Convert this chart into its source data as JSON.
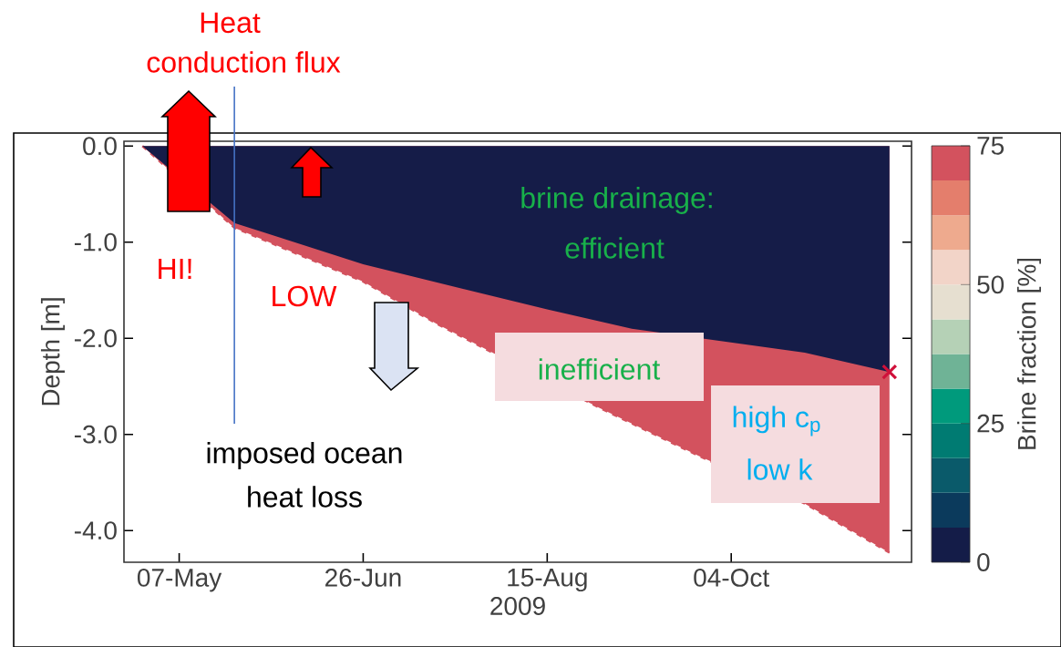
{
  "chart_data": {
    "type": "area",
    "xlabel": "2009",
    "ylabel": "Depth [m]",
    "clabel": "Brine fraction [%]",
    "xlim": [
      "2009-04-22",
      "2009-11-22"
    ],
    "xticks": [
      {
        "value": "2009-05-07",
        "label": "07-May"
      },
      {
        "value": "2009-06-26",
        "label": "26-Jun"
      },
      {
        "value": "2009-08-15",
        "label": "15-Aug"
      },
      {
        "value": "2009-10-04",
        "label": "04-Oct"
      }
    ],
    "ylim": [
      -4.33,
      0.05
    ],
    "yticks": [
      {
        "value": 0,
        "label": "0.0"
      },
      {
        "value": -1,
        "label": "-1.0"
      },
      {
        "value": -2,
        "label": "-2.0"
      },
      {
        "value": -3,
        "label": "-3.0"
      },
      {
        "value": -4,
        "label": "-4.0"
      }
    ],
    "clim": [
      0,
      75
    ],
    "cticks": [
      0,
      25,
      50,
      75
    ],
    "series": [
      {
        "color": "#d3525e",
        "line_style": "dashed",
        "x": [
          "2009-04-27",
          "2009-05-07",
          "2009-05-22",
          "2009-06-26",
          "2009-07-16",
          "2009-08-29",
          "2009-09-25",
          "2009-10-24",
          "2009-11-16"
        ],
        "values": [
          0,
          null,
          -0.85,
          -1.41,
          -1.85,
          -2.72,
          -3.22,
          -3.72,
          -4.23
        ]
      },
      {
        "color": "#151c48",
        "x": [
          "2009-04-27",
          "2009-05-22",
          "2009-06-26",
          "2009-08-15",
          "2009-09-07",
          "2009-10-24",
          "2009-11-16"
        ],
        "values": [
          0,
          -0.8,
          -1.23,
          -1.7,
          -1.9,
          -2.15,
          -2.35
        ]
      },
      {
        "type": "scatter",
        "marker": "cross",
        "color": "#d0103a",
        "x": [
          "2009-11-16"
        ],
        "values": [
          -2.35
        ]
      }
    ],
    "ref_lines": [
      {
        "axis": "x",
        "value": "2009-05-22",
        "color": "#4472c4"
      }
    ],
    "annotations": [
      "Heat",
      "conduction flux",
      "HI!",
      "LOW",
      "brine drainage:",
      "efficient",
      "inefficient",
      "high c$_{p}$",
      "low k",
      "imposed ocean",
      "heat loss"
    ]
  }
}
